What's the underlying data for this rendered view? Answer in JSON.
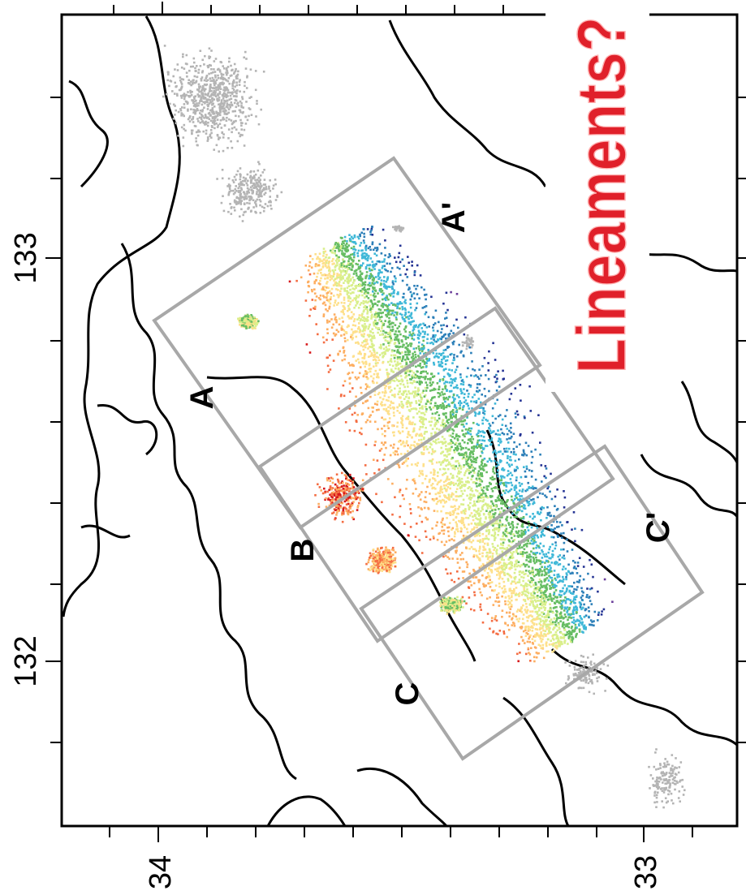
{
  "map": {
    "longitude_ticks": [
      "133",
      "132"
    ],
    "latitude_ticks": [
      "34",
      "33"
    ],
    "section_labels": {
      "A": "A",
      "A_prime": "A'",
      "B": "B",
      "C": "C",
      "C_prime": "C'"
    },
    "banner_text": "Lineaments?",
    "colors": {
      "frame": "#000000",
      "coastline": "#000000",
      "section_box": "#a8a8a8",
      "background_seismicity": "#b4b4b4",
      "depth_scale": [
        "#d7191c",
        "#f46d43",
        "#fdae61",
        "#fee08b",
        "#d9ef8b",
        "#66bd63",
        "#3fb8d8",
        "#2c7fb8",
        "#253494",
        "#6a3d9a"
      ],
      "banner_text": "#e0202a"
    }
  }
}
